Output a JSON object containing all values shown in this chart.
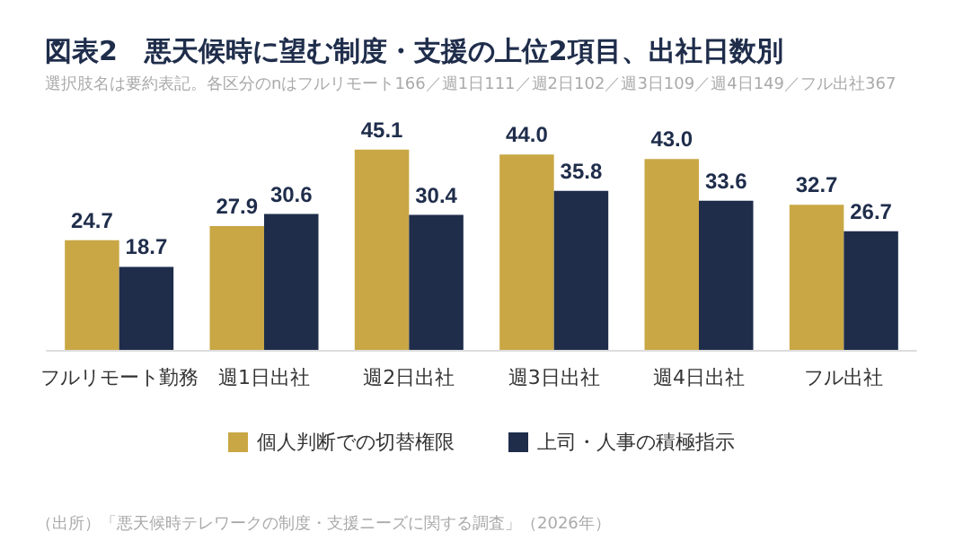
{
  "chart_data": {
    "type": "bar",
    "title": "図表2　悪天候時に望む制度・支援の上位2項目、出社日数別",
    "subtitle": "選択肢名は要約表記。各区分のnはフルリモート166／週1日111／週2日102／週3日109／週4日149／フル出社367",
    "categories": [
      "フルリモート勤務",
      "週1日出社",
      "週2日出社",
      "週3日出社",
      "週4日出社",
      "フル出社"
    ],
    "series": [
      {
        "name": "個人判断での切替権限",
        "color": "#c9a744",
        "values": [
          24.7,
          27.9,
          45.1,
          44.0,
          43.0,
          32.7
        ],
        "value_labels": [
          "24.7",
          "27.9",
          "45.1",
          "44.0",
          "43.0",
          "32.7"
        ]
      },
      {
        "name": "上司・人事の積極指示",
        "color": "#1f2d4b",
        "values": [
          18.7,
          30.6,
          30.4,
          35.8,
          33.6,
          26.7
        ],
        "value_labels": [
          "18.7",
          "30.6",
          "30.4",
          "35.8",
          "33.6",
          "26.7"
        ]
      }
    ],
    "legend": "bottom",
    "annotations": [
      "（出所）「悪天候時テレワークの制度・支援ニーズに関する調査」（2026年）"
    ]
  }
}
